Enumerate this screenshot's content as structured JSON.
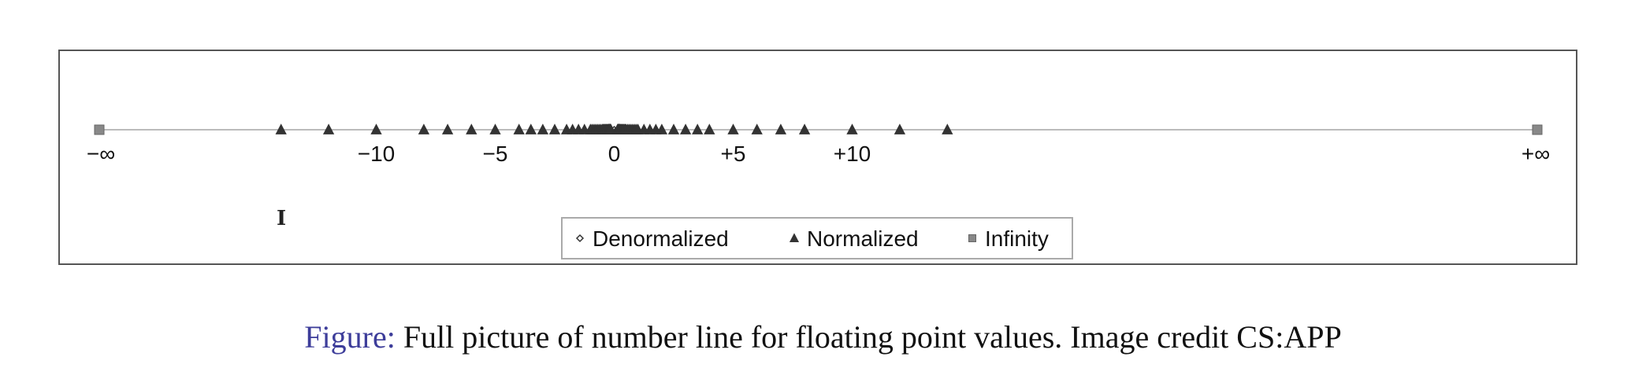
{
  "colors": {
    "marker": "#333333",
    "infinity": "#888888",
    "axis_line": "#bbbbbb",
    "caption_label": "#3d3d9a"
  },
  "chart_data": {
    "type": "scatter",
    "xlim": [
      -17,
      17
    ],
    "legend_position": "bottom-center",
    "grid": false,
    "tick_labels": [
      {
        "label": "−∞",
        "kind": "neg_inf"
      },
      {
        "label": "−10",
        "value": -10
      },
      {
        "label": "−5",
        "value": -5
      },
      {
        "label": "0",
        "value": 0
      },
      {
        "label": "+5",
        "value": 5
      },
      {
        "label": "+10",
        "value": 10
      },
      {
        "label": "+∞",
        "kind": "pos_inf"
      }
    ],
    "series": [
      {
        "name": "Denormalized",
        "marker": "diamond",
        "values": [
          -0.875,
          -0.75,
          -0.625,
          -0.5,
          -0.375,
          -0.25,
          -0.125,
          0,
          0.125,
          0.25,
          0.375,
          0.5,
          0.625,
          0.75,
          0.875
        ]
      },
      {
        "name": "Normalized",
        "marker": "triangle",
        "values": [
          -14,
          -12,
          -10,
          -8,
          -7,
          -6,
          -5,
          -4,
          -3.5,
          -3,
          -2.5,
          -2,
          -1.75,
          -1.5,
          -1.25,
          -1,
          -0.9375,
          -0.875,
          -0.8125,
          -0.75,
          -0.6875,
          -0.625,
          -0.5625,
          -0.5,
          -0.46875,
          -0.4375,
          -0.40625,
          -0.375,
          -0.34375,
          -0.3125,
          -0.28125,
          -0.25,
          -0.234375,
          -0.21875,
          -0.203125,
          -0.1875,
          -0.171875,
          -0.15625,
          -0.140625,
          0.140625,
          0.15625,
          0.171875,
          0.1875,
          0.203125,
          0.21875,
          0.234375,
          0.25,
          0.28125,
          0.3125,
          0.34375,
          0.375,
          0.40625,
          0.4375,
          0.46875,
          0.5,
          0.5625,
          0.625,
          0.6875,
          0.75,
          0.8125,
          0.875,
          0.9375,
          1,
          1.25,
          1.5,
          1.75,
          2,
          2.5,
          3,
          3.5,
          4,
          5,
          6,
          7,
          8,
          10,
          12,
          14
        ]
      },
      {
        "name": "Infinity",
        "marker": "square",
        "values": [
          "-inf",
          "+inf"
        ]
      }
    ]
  },
  "caption": {
    "label": "Figure:",
    "text": " Full picture of number line for floating point values. Image credit CS:APP"
  }
}
